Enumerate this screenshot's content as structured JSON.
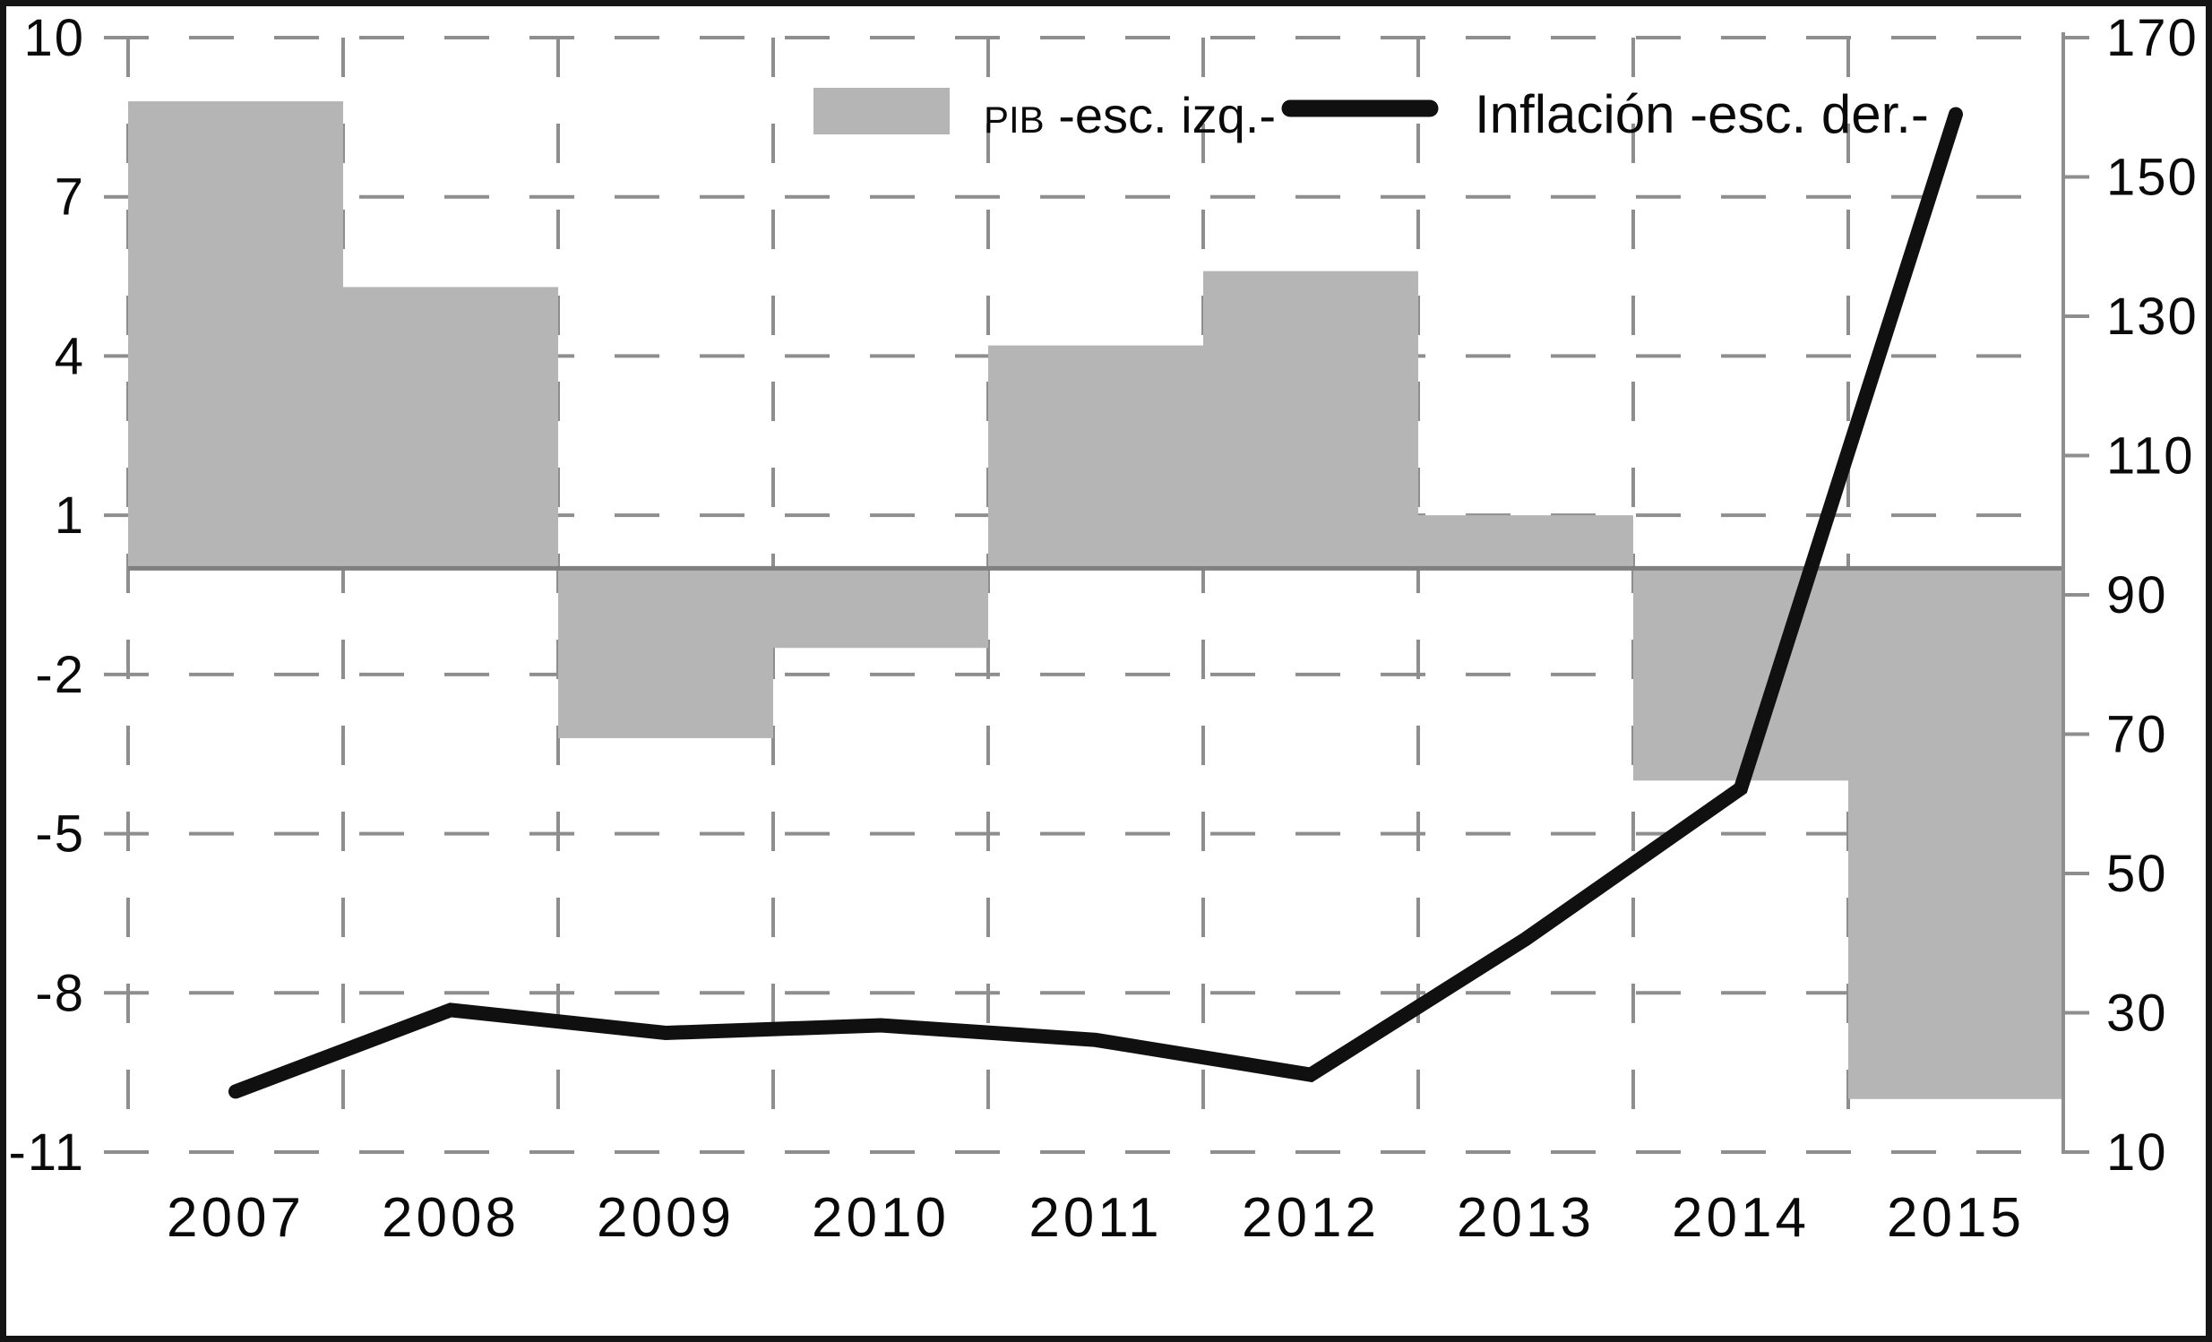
{
  "chart_data": {
    "type": "combo",
    "title": "",
    "categories": [
      "2007",
      "2008",
      "2009",
      "2010",
      "2011",
      "2012",
      "2013",
      "2014",
      "2015"
    ],
    "series": [
      {
        "name": "PIB -esc. izq.-",
        "type": "bar",
        "axis": "left",
        "color": "#b5b5b5",
        "values": [
          8.8,
          5.3,
          -3.2,
          -1.5,
          4.2,
          5.6,
          1.0,
          -4.0,
          -10.0
        ]
      },
      {
        "name": "Inflación -esc. der.-",
        "type": "line",
        "axis": "right",
        "color": "#101010",
        "values": [
          18.7,
          30.4,
          27.1,
          28.2,
          26.1,
          21.1,
          40.6,
          62.2,
          159
        ]
      }
    ],
    "left_axis": {
      "ticks": [
        "10",
        "7",
        "4",
        "1",
        "-2",
        "-5",
        "-8",
        "-11"
      ],
      "max": 10,
      "min": -11
    },
    "right_axis": {
      "ticks": [
        "170",
        "150",
        "130",
        "110",
        "90",
        "70",
        "50",
        "30",
        "10"
      ],
      "max": 170,
      "min": 10
    },
    "xlabel": "",
    "ylabel_left": "",
    "ylabel_right": "",
    "grid": "dashed gray, both directions",
    "legend_position": "top-center",
    "zero_line": 0
  },
  "legend": {
    "pib_swatch_color": "#b5b5b5",
    "pib_prefix": "PIB",
    "pib_rest": " -esc. izq.-",
    "inflacion_label": "Inflación -esc. der.-"
  },
  "colors": {
    "bar": "#b5b5b5",
    "line": "#101010",
    "grid": "#8e8e8e",
    "zero_line": "#7f7f7f",
    "frame": "#151515",
    "text": "#0a0a0a"
  }
}
